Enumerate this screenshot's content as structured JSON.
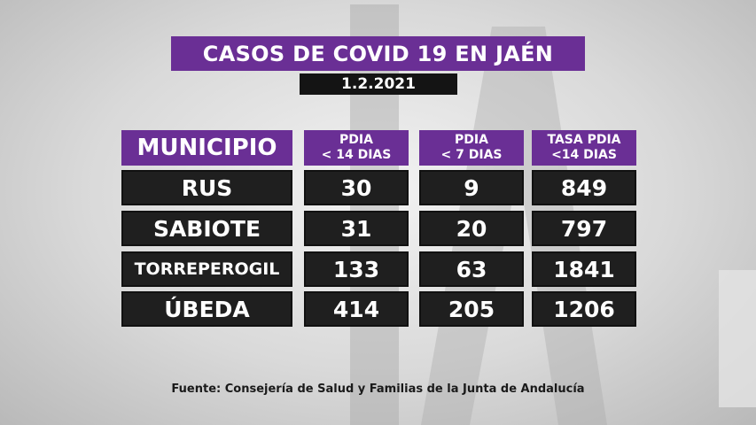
{
  "title": "CASOS DE COVID 19 EN JAÉN",
  "date": "1.2.2021",
  "headers": {
    "municipio": "MUNICIPIO",
    "pdia14": [
      "PDIA",
      "< 14 DIAS"
    ],
    "pdia7": [
      "PDIA",
      "< 7 DIAS"
    ],
    "tasa": [
      "TASA PDIA",
      "<14 DIAS"
    ]
  },
  "rows": [
    {
      "municipio": "RUS",
      "pdia14": "30",
      "pdia7": "9",
      "tasa": "849"
    },
    {
      "municipio": "SABIOTE",
      "pdia14": "31",
      "pdia7": "20",
      "tasa": "797"
    },
    {
      "municipio": "TORREPEROGIL",
      "pdia14": "133",
      "pdia7": "63",
      "tasa": "1841"
    },
    {
      "municipio": "ÚBEDA",
      "pdia14": "414",
      "pdia7": "205",
      "tasa": "1206"
    }
  ],
  "source": "Fuente: Consejería de Salud y Familias de la Junta de Andalucía",
  "colors": {
    "accent": "#6a2f95",
    "cell": "#1f1f1f"
  }
}
